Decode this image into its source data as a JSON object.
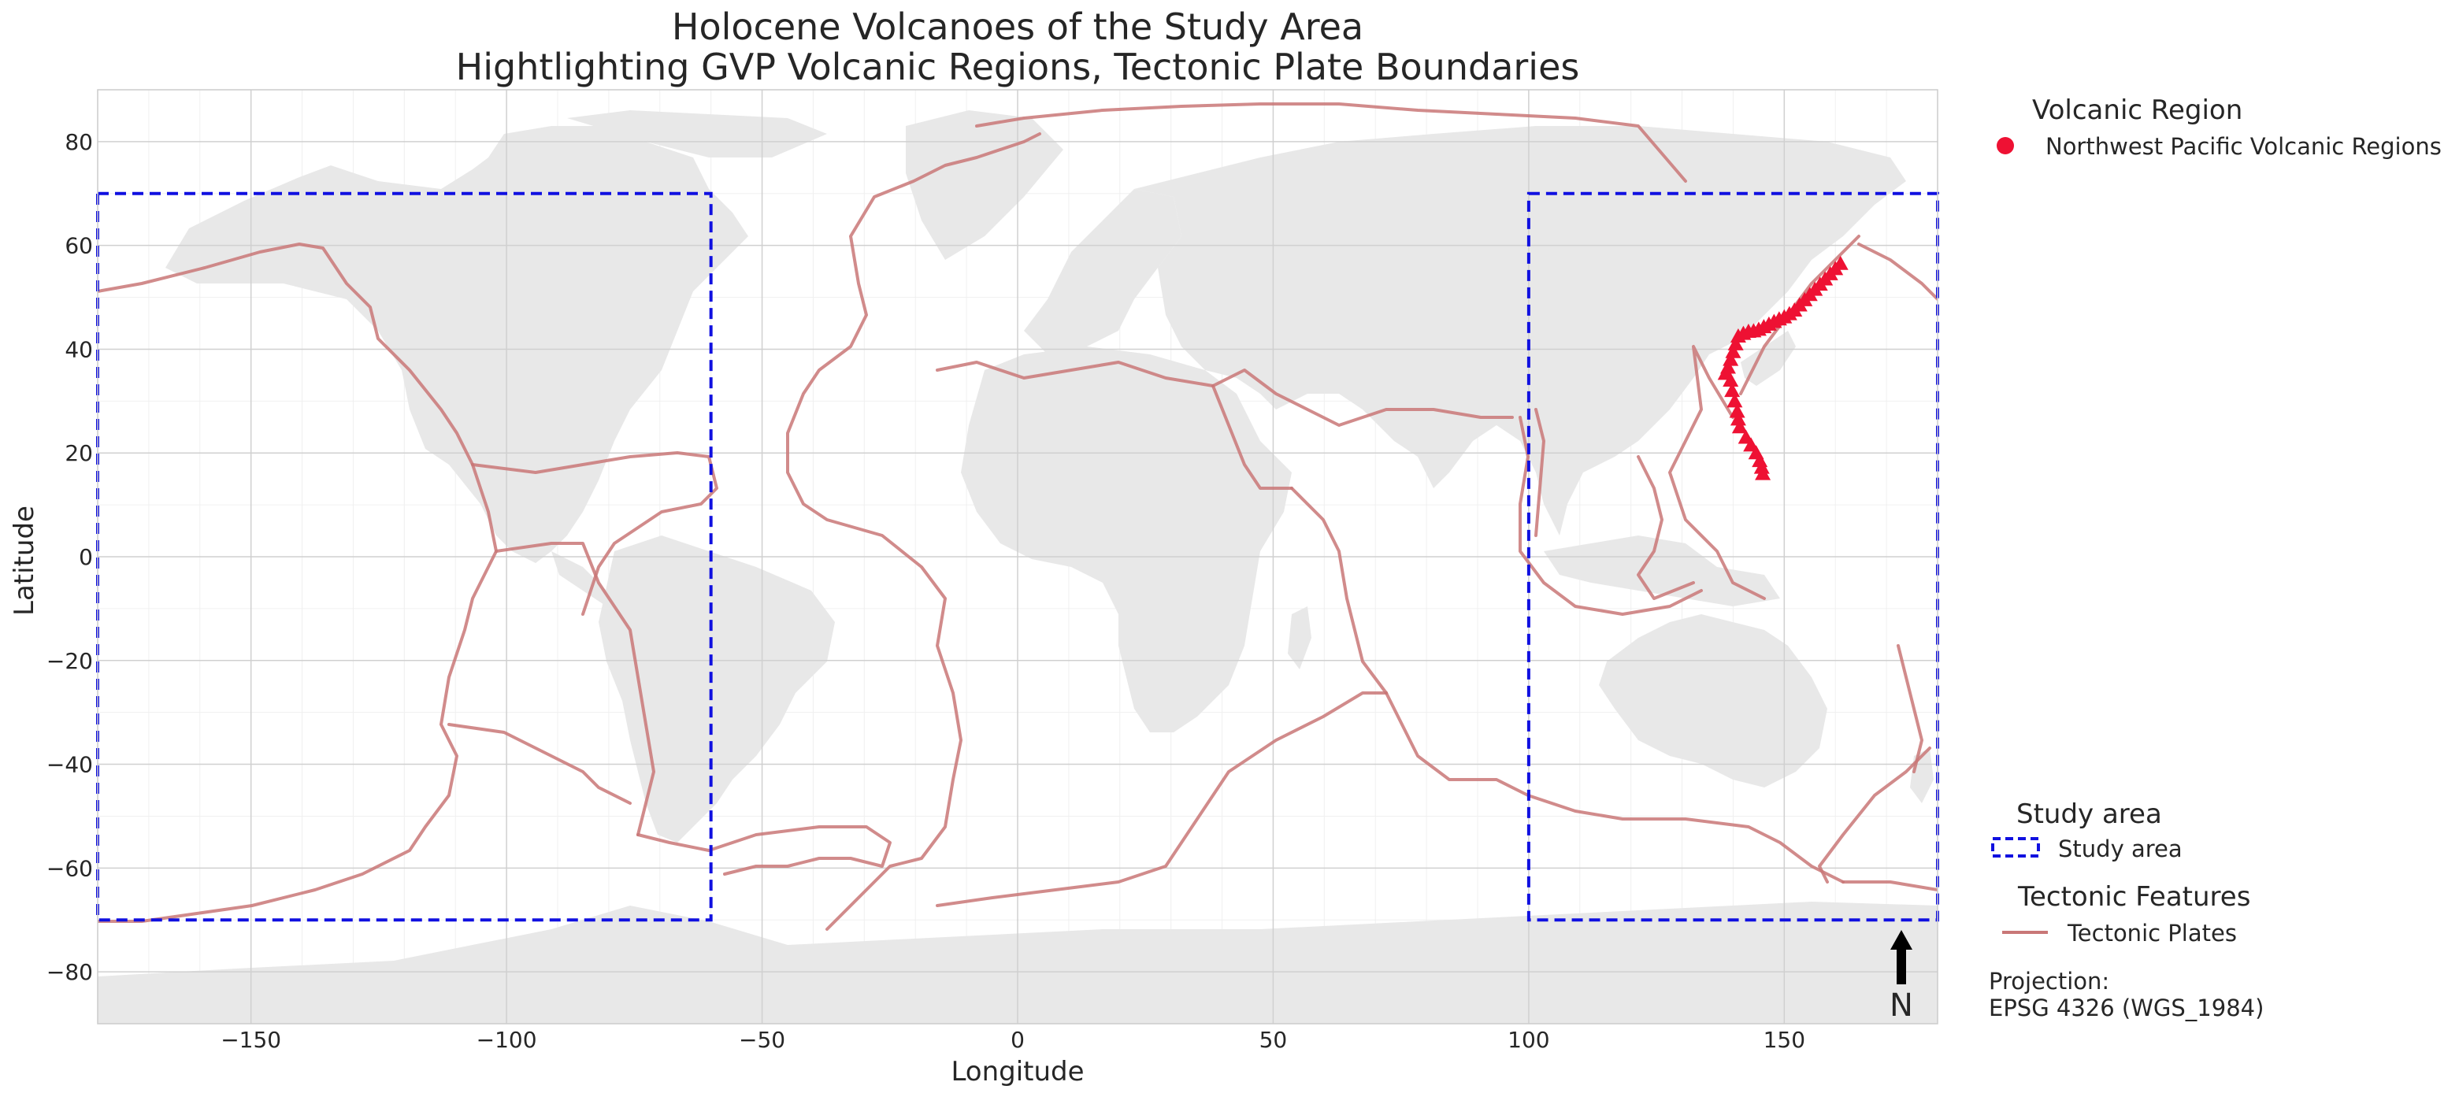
{
  "title": {
    "line1": "Holocene Volcanoes of the Study Area",
    "line2": "Hightlighting GVP Volcanic Regions, Tectonic Plate Boundaries"
  },
  "axes": {
    "xlabel": "Longitude",
    "ylabel": "Latitude",
    "xlim": [
      -180,
      180
    ],
    "ylim": [
      -90,
      90
    ],
    "xticks": [
      -150,
      -100,
      -50,
      0,
      50,
      100,
      150
    ],
    "yticks": [
      -80,
      -60,
      -40,
      -20,
      0,
      20,
      40,
      60,
      80
    ],
    "xtick_labels": [
      "−150",
      "−100",
      "−50",
      "0",
      "50",
      "100",
      "150"
    ],
    "ytick_labels": [
      "−80",
      "−60",
      "−40",
      "−20",
      "0",
      "20",
      "40",
      "60",
      "80"
    ],
    "grid": true
  },
  "legend": {
    "volcanic": {
      "title": "Volcanic Region",
      "label": "Northwest Pacific Volcanic Regions",
      "color": "#ee1133"
    },
    "study": {
      "title": "Study area",
      "label": "Study area",
      "color": "#1010e0"
    },
    "tectonic": {
      "title": "Tectonic Features",
      "label": "Tectonic Plates",
      "color": "#c97777"
    }
  },
  "projection": {
    "line1": "Projection:",
    "line2": "EPSG 4326 (WGS_1984)"
  },
  "north_arrow": {
    "label": "N"
  },
  "colors": {
    "land": "#e8e8e8",
    "plates": "#c97777",
    "study_box": "#1010e0",
    "volcano": "#ee1133",
    "grid_major": "#d0d0d0",
    "grid_minor": "#f0f0f0"
  },
  "chart_data": {
    "type": "scatter",
    "title": "Holocene Volcanoes of the Study Area",
    "subtitle": "Hightlighting GVP Volcanic Regions, Tectonic Plate Boundaries",
    "xlabel": "Longitude",
    "ylabel": "Latitude",
    "xlim": [
      -180,
      180
    ],
    "ylim": [
      -90,
      90
    ],
    "study_areas": [
      {
        "lon_min": -180,
        "lon_max": -60,
        "lat_min": -70,
        "lat_max": 70
      },
      {
        "lon_min": 100,
        "lon_max": 180,
        "lat_min": -70,
        "lat_max": 70
      }
    ],
    "series": [
      {
        "name": "Northwest Pacific Volcanic Regions",
        "marker": "triangle",
        "points": [
          [
            161,
            56.5
          ],
          [
            160,
            55.5
          ],
          [
            159,
            54.5
          ],
          [
            158,
            53.5
          ],
          [
            157,
            52.5
          ],
          [
            156,
            51.5
          ],
          [
            155,
            50.5
          ],
          [
            154,
            49.5
          ],
          [
            153,
            48.5
          ],
          [
            152,
            47.5
          ],
          [
            151,
            46.8
          ],
          [
            150,
            46.2
          ],
          [
            149,
            45.8
          ],
          [
            148,
            45.3
          ],
          [
            147,
            44.8
          ],
          [
            146,
            44.3
          ],
          [
            145,
            43.8
          ],
          [
            144,
            43.5
          ],
          [
            143,
            43.4
          ],
          [
            142,
            43.0
          ],
          [
            141,
            42.5
          ],
          [
            140.5,
            41.0
          ],
          [
            140,
            39.5
          ],
          [
            139.5,
            38.0
          ],
          [
            139,
            36.5
          ],
          [
            138.5,
            35.3
          ],
          [
            139.5,
            34.0
          ],
          [
            139.8,
            32.0
          ],
          [
            140.3,
            30.0
          ],
          [
            140.8,
            28.0
          ],
          [
            141,
            26.5
          ],
          [
            141.3,
            25.0
          ],
          [
            142.5,
            23.0
          ],
          [
            143.5,
            21.5
          ],
          [
            144.5,
            20.0
          ],
          [
            145.2,
            18.5
          ],
          [
            145.6,
            17.2
          ],
          [
            145.8,
            16.0
          ]
        ]
      }
    ],
    "legend_placement": "right"
  }
}
